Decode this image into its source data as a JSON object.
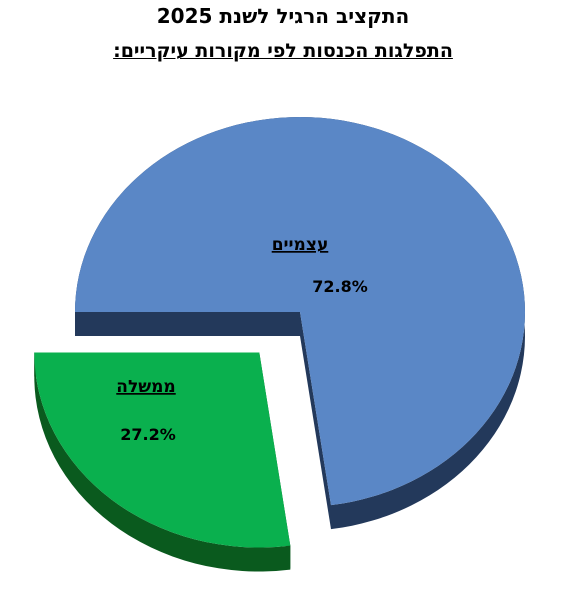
{
  "chart_data": {
    "type": "pie",
    "title": "התקציב הרגיל לשנת 2025",
    "subtitle": "התפלגות הכנסות לפי מקורות עיקריים:",
    "slices": [
      {
        "label": "עצמיים",
        "value": 72.8,
        "value_label": "72.8%",
        "color": "#5a87c6",
        "side_color": "#23395b",
        "exploded": false
      },
      {
        "label": "ממשלה",
        "value": 27.2,
        "value_label": "27.2%",
        "color": "#0ab04e",
        "side_color": "#0a5a1e",
        "exploded": true
      }
    ],
    "legend": "none"
  }
}
